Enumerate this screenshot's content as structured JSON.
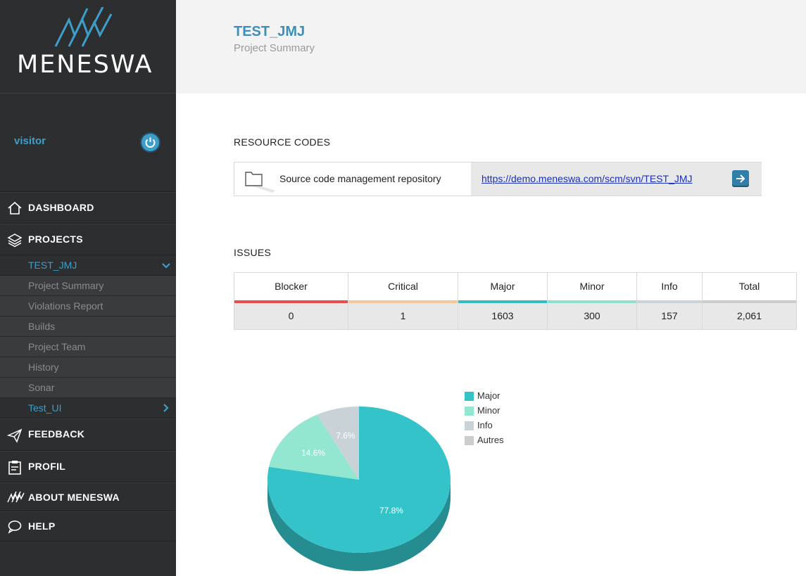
{
  "app": {
    "logo_text": "MENESWA",
    "accent_color": "#3d9ec9"
  },
  "user": {
    "name": "visitor"
  },
  "nav": {
    "dashboard": "DASHBOARD",
    "projects": "PROJECTS",
    "project_current": "TEST_JMJ",
    "project_subitems": [
      "Project Summary",
      "Violations Report",
      "Builds",
      "Project Team",
      "History",
      "Sonar"
    ],
    "project_other": "Test_UI",
    "feedback": "FEEDBACK",
    "profil": "PROFIL",
    "about": "ABOUT MENESWA",
    "help": "HELP"
  },
  "header": {
    "title": "TEST_JMJ",
    "subtitle": "Project Summary"
  },
  "resources": {
    "section_title": "RESOURCE CODES",
    "label": "Source code management repository",
    "url": "https://demo.meneswa.com/scm/svn/TEST_JMJ"
  },
  "issues": {
    "section_title": "ISSUES",
    "columns": [
      {
        "label": "Blocker",
        "value": "0",
        "color": "#e84c4c"
      },
      {
        "label": "Critical",
        "value": "1",
        "color": "#f5c89a"
      },
      {
        "label": "Major",
        "value": "1603",
        "color": "#35bcc4"
      },
      {
        "label": "Minor",
        "value": "300",
        "color": "#8fe0cc"
      },
      {
        "label": "Info",
        "value": "157",
        "color": "#c9d3d8"
      },
      {
        "label": "Total",
        "value": "2,061",
        "color": "#cccccc"
      }
    ]
  },
  "chart_data": {
    "type": "pie",
    "title": "",
    "series": [
      {
        "name": "Major",
        "value": 77.8,
        "label": "77.8%",
        "color": "#33c3c8"
      },
      {
        "name": "Minor",
        "value": 14.6,
        "label": "14.6%",
        "color": "#93e6d0"
      },
      {
        "name": "Info",
        "value": 7.6,
        "label": "7.6%",
        "color": "#c8d2d7"
      },
      {
        "name": "Autres",
        "value": 0,
        "label": "",
        "color": "#cccccc"
      }
    ],
    "legend_position": "top-right",
    "three_d": true
  }
}
